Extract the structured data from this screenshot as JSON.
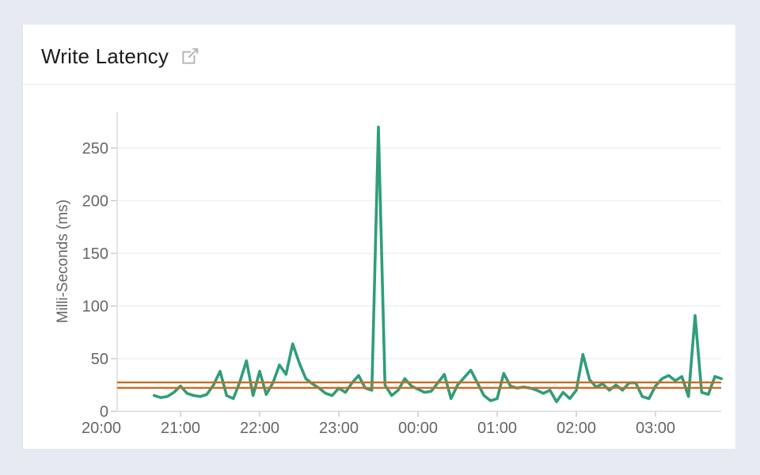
{
  "header": {
    "title": "Write Latency",
    "title_action_icon": "external-link"
  },
  "colors": {
    "page_background": "#e8eaf3",
    "card_background": "#ffffff",
    "series_green": "#2f9e77",
    "threshold_orange": "#cc6a1f",
    "axis_line": "#d9d9d9",
    "gridline": "#efefef",
    "tick_mark": "#c9c9c9",
    "tick_text": "#666666",
    "title_text": "#1b1b1b",
    "icon_gray": "#b3b3b3"
  },
  "chart_data": {
    "type": "line",
    "title": "Write Latency",
    "xlabel": "",
    "ylabel": "Milli-Seconds (ms)",
    "ylim": [
      0,
      280
    ],
    "yticks": [
      0,
      50,
      100,
      150,
      200,
      250
    ],
    "xtick_labels": [
      "20:00",
      "21:00",
      "22:00",
      "23:00",
      "00:00",
      "01:00",
      "02:00",
      "03:00"
    ],
    "grid": true,
    "legend": "none",
    "interval_minutes": 5,
    "series_name": "write-latency-ms",
    "series_color": "#2f9e77",
    "threshold_lines": [
      {
        "name": "upper-average-marker",
        "value": 27.4,
        "color": "#cc6a1f"
      },
      {
        "name": "lower-average-marker",
        "value": 22.2,
        "color": "#cc6a1f"
      }
    ],
    "x": [
      "20:40",
      "20:45",
      "20:50",
      "20:55",
      "21:00",
      "21:05",
      "21:10",
      "21:15",
      "21:20",
      "21:25",
      "21:30",
      "21:35",
      "21:40",
      "21:45",
      "21:50",
      "21:55",
      "22:00",
      "22:05",
      "22:10",
      "22:15",
      "22:20",
      "22:25",
      "22:30",
      "22:35",
      "22:40",
      "22:45",
      "22:50",
      "22:55",
      "23:00",
      "23:05",
      "23:10",
      "23:15",
      "23:20",
      "23:25",
      "23:30",
      "23:35",
      "23:40",
      "23:45",
      "23:50",
      "23:55",
      "00:00",
      "00:05",
      "00:10",
      "00:15",
      "00:20",
      "00:25",
      "00:30",
      "00:35",
      "00:40",
      "00:45",
      "00:50",
      "00:55",
      "01:00",
      "01:05",
      "01:10",
      "01:15",
      "01:20",
      "01:25",
      "01:30",
      "01:35",
      "01:40",
      "01:45",
      "01:50",
      "01:55",
      "02:00",
      "02:05",
      "02:10",
      "02:15",
      "02:20",
      "02:25",
      "02:30",
      "02:35",
      "02:40",
      "02:45",
      "02:50",
      "02:55",
      "03:00",
      "03:05",
      "03:10",
      "03:15",
      "03:20",
      "03:25",
      "03:30",
      "03:35",
      "03:40",
      "03:45",
      "03:50"
    ],
    "values": [
      15,
      13,
      14,
      18,
      24,
      17,
      15,
      14,
      16,
      25,
      38,
      15,
      12,
      28,
      48,
      15,
      38,
      16,
      27,
      44,
      35,
      64,
      46,
      31,
      26,
      22,
      17,
      15,
      22,
      18,
      27,
      34,
      22,
      20,
      270,
      25,
      15,
      20,
      31,
      24,
      21,
      18,
      19,
      27,
      35,
      12,
      25,
      32,
      39,
      27,
      15,
      10,
      12,
      36,
      24,
      22,
      23,
      22,
      20,
      17,
      20,
      9,
      18,
      12,
      20,
      54,
      30,
      23,
      26,
      20,
      25,
      20,
      27,
      27,
      14,
      12,
      24,
      31,
      34,
      29,
      33,
      14,
      91,
      18,
      16,
      33,
      31
    ]
  }
}
